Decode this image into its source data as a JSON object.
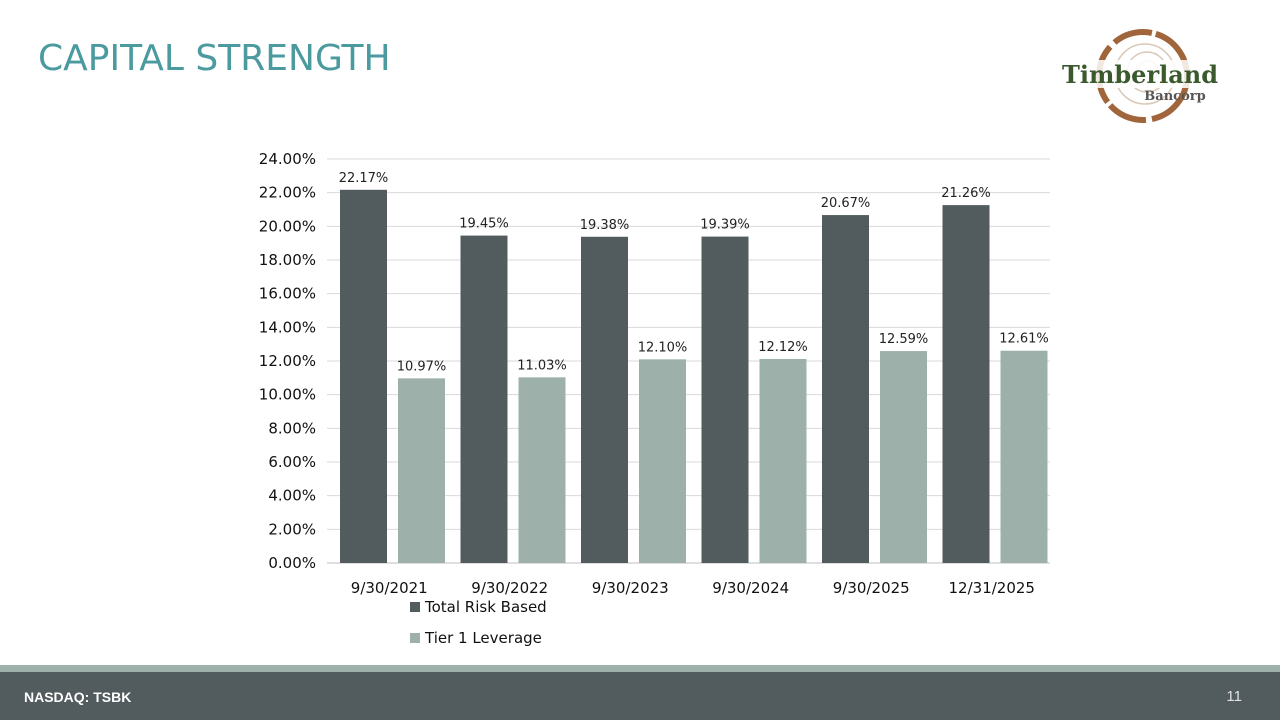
{
  "title": "CAPITAL STRENGTH",
  "logo": {
    "text_main": "Timberland",
    "text_sub": "Bancorp"
  },
  "footer": {
    "ticker": "NASDAQ: TSBK",
    "page": "11"
  },
  "colors": {
    "title": "#4a9aa0",
    "series_dark": "#525b5d",
    "series_light": "#9eb0aa",
    "footer": "#525b5d"
  },
  "chart_data": {
    "type": "bar",
    "categories": [
      "9/30/2021",
      "9/30/2022",
      "9/30/2023",
      "9/30/2024",
      "9/30/2025",
      "12/31/2025"
    ],
    "series": [
      {
        "name": "Total Risk Based",
        "values": [
          22.17,
          19.45,
          19.38,
          19.39,
          20.67,
          21.26
        ],
        "labels": [
          "22.17%",
          "19.45%",
          "19.38%",
          "19.39%",
          "20.67%",
          "21.26%"
        ]
      },
      {
        "name": "Tier 1 Leverage",
        "values": [
          10.97,
          11.03,
          12.1,
          12.12,
          12.59,
          12.61
        ],
        "labels": [
          "10.97%",
          "11.03%",
          "12.10%",
          "12.12%",
          "12.59%",
          "12.61%"
        ]
      }
    ],
    "ylim": [
      0,
      24
    ],
    "yticks": [
      "0.00%",
      "2.00%",
      "4.00%",
      "6.00%",
      "8.00%",
      "10.00%",
      "12.00%",
      "14.00%",
      "16.00%",
      "18.00%",
      "20.00%",
      "22.00%",
      "24.00%"
    ],
    "grid": true,
    "legend": "bottom-left"
  }
}
